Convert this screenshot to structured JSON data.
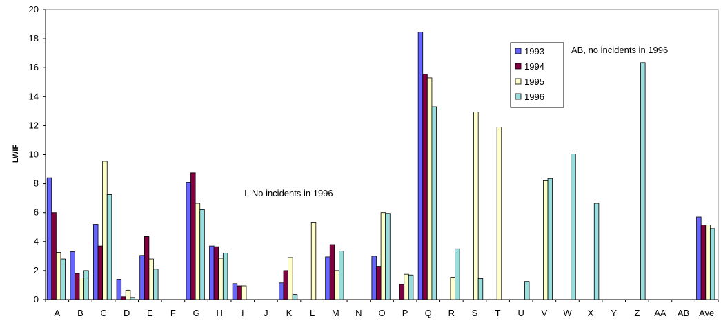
{
  "chart_data": {
    "type": "bar",
    "title": "",
    "xlabel": "",
    "ylabel": "LWIF",
    "ylim": [
      0,
      20
    ],
    "yticks": [
      0,
      2,
      4,
      6,
      8,
      10,
      12,
      14,
      16,
      18,
      20
    ],
    "grid": false,
    "legend_position": "top-right",
    "categories": [
      "A",
      "B",
      "C",
      "D",
      "E",
      "F",
      "G",
      "H",
      "I",
      "J",
      "K",
      "L",
      "M",
      "N",
      "O",
      "P",
      "Q",
      "R",
      "S",
      "T",
      "U",
      "V",
      "W",
      "X",
      "Y",
      "Z",
      "AA",
      "AB",
      "Ave"
    ],
    "series": [
      {
        "name": "1993",
        "color": "#6666ff",
        "values": [
          8.4,
          3.3,
          5.2,
          1.4,
          3.05,
          null,
          8.1,
          3.7,
          1.1,
          null,
          1.15,
          null,
          2.95,
          null,
          3.0,
          null,
          18.45,
          null,
          null,
          null,
          null,
          null,
          null,
          null,
          null,
          null,
          null,
          null,
          5.7
        ]
      },
      {
        "name": "1994",
        "color": "#800040",
        "values": [
          6.0,
          1.8,
          3.7,
          0.2,
          4.35,
          null,
          8.75,
          3.65,
          0.95,
          null,
          2.0,
          null,
          3.8,
          null,
          2.3,
          1.05,
          15.55,
          null,
          null,
          null,
          null,
          null,
          null,
          null,
          null,
          null,
          null,
          null,
          5.15
        ]
      },
      {
        "name": "1995",
        "color": "#ffffcc",
        "values": [
          3.25,
          1.5,
          9.55,
          0.65,
          2.8,
          null,
          6.65,
          2.85,
          0.95,
          null,
          2.9,
          5.3,
          2.0,
          null,
          6.0,
          1.75,
          15.3,
          1.55,
          12.95,
          11.9,
          null,
          8.2,
          null,
          null,
          null,
          null,
          null,
          null,
          5.15
        ]
      },
      {
        "name": "1996",
        "color": "#99dddd",
        "values": [
          2.8,
          2.0,
          7.25,
          0.15,
          2.1,
          null,
          6.2,
          3.2,
          null,
          null,
          0.35,
          null,
          3.35,
          null,
          5.95,
          1.7,
          13.3,
          3.5,
          1.45,
          null,
          1.25,
          8.35,
          10.05,
          6.65,
          null,
          16.35,
          null,
          null,
          4.9
        ]
      }
    ],
    "annotations": [
      {
        "text": "I, No incidents in 1996"
      },
      {
        "text": "AB, no incidents in 1996"
      }
    ]
  }
}
